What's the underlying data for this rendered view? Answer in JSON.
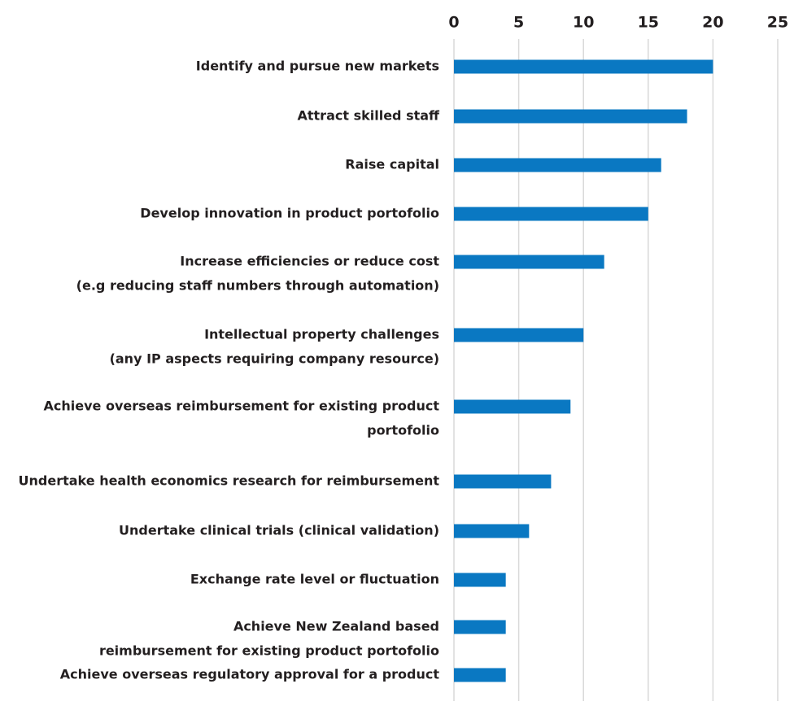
{
  "chart_data": {
    "type": "bar",
    "orientation": "horizontal",
    "categories": [
      [
        "Identify and pursue new markets"
      ],
      [
        "Attract skilled staff"
      ],
      [
        "Raise capital"
      ],
      [
        "Develop innovation in product portofolio"
      ],
      [
        "Increase efficiencies or reduce cost",
        "(e.g reducing staff numbers through automation)"
      ],
      [
        "Intellectual property challenges",
        "(any IP aspects requiring company resource)"
      ],
      [
        "Achieve overseas reimbursement for existing product",
        "portofolio"
      ],
      [
        "Undertake health economics research for reimbursement"
      ],
      [
        "Undertake clinical trials (clinical validation)"
      ],
      [
        "Exchange rate level or fluctuation"
      ],
      [
        "Achieve  New Zealand based",
        "reimbursement for existing product portofolio"
      ],
      [
        "Achieve overseas regulatory approval for a product"
      ]
    ],
    "values": [
      20,
      18,
      16,
      15,
      11.6,
      10,
      9,
      7.5,
      5.8,
      4,
      4,
      4
    ],
    "color": "#0a78c2",
    "xlim": [
      0,
      25
    ],
    "xticks": [
      0,
      5,
      10,
      15,
      20,
      25
    ],
    "grid": true
  }
}
